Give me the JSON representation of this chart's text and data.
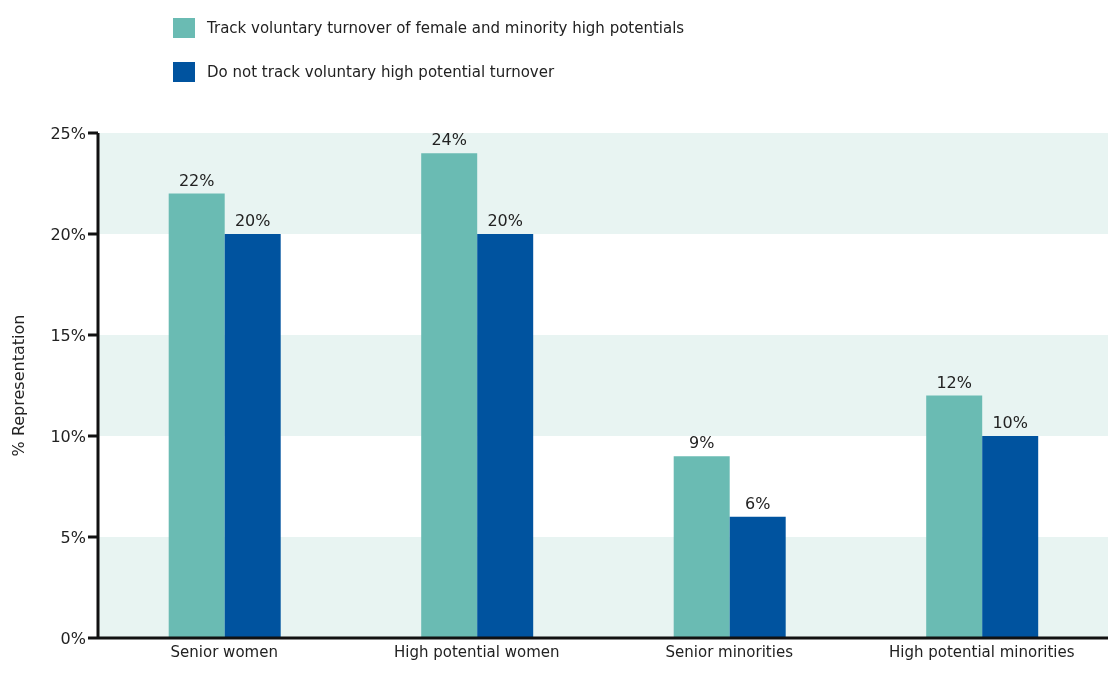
{
  "chart_data": {
    "type": "bar",
    "ylabel": "% Representation",
    "categories": [
      "Senior women",
      "High potential women",
      "Senior minorities",
      "High potential minorities"
    ],
    "series": [
      {
        "name": "Track voluntary turnover of female and minority high potentials",
        "color": "#6abbb3",
        "values": [
          22,
          24,
          9,
          12
        ],
        "value_labels": [
          "22%",
          "24%",
          "9%",
          "12%"
        ]
      },
      {
        "name": "Do not track voluntary high potential turnover",
        "color": "#00539f",
        "values": [
          20,
          20,
          6,
          10
        ],
        "value_labels": [
          "20%",
          "20%",
          "6%",
          "10%"
        ]
      }
    ],
    "ylim": [
      0,
      25
    ],
    "yticks": [
      {
        "value": 0,
        "label": "0%"
      },
      {
        "value": 5,
        "label": "5%"
      },
      {
        "value": 10,
        "label": "10%"
      },
      {
        "value": 15,
        "label": "15%"
      },
      {
        "value": 20,
        "label": "20%"
      },
      {
        "value": 25,
        "label": "25%"
      }
    ],
    "bands": [
      {
        "axis": "y",
        "from": 0,
        "to": 5,
        "color": "#e8f4f2"
      },
      {
        "axis": "y",
        "from": 10,
        "to": 15,
        "color": "#e8f4f2"
      },
      {
        "axis": "y",
        "from": 20,
        "to": 25,
        "color": "#e8f4f2"
      }
    ],
    "grid": false,
    "legend": "top left"
  }
}
